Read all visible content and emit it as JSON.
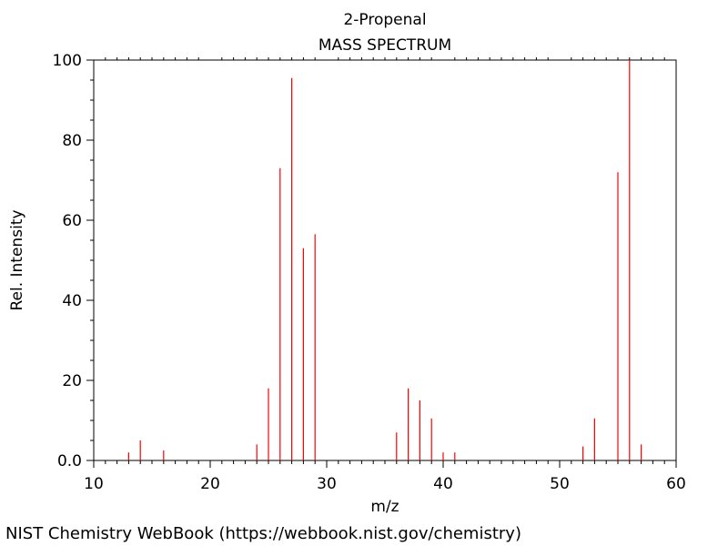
{
  "footer": "NIST Chemistry WebBook (https://webbook.nist.gov/chemistry)",
  "chart_data": {
    "type": "bar",
    "title": "2-Propenal",
    "subtitle": "MASS SPECTRUM",
    "xlabel": "m/z",
    "ylabel": "Rel. Intensity",
    "xlim": [
      10,
      60
    ],
    "ylim": [
      0,
      100
    ],
    "xticks": [
      10,
      20,
      30,
      40,
      50,
      60
    ],
    "xtick_labels": [
      "10",
      "20",
      "30",
      "40",
      "50",
      "60"
    ],
    "yticks": [
      0,
      20,
      40,
      60,
      80,
      100
    ],
    "ytick_labels": [
      "0.0",
      "20",
      "40",
      "60",
      "80",
      "100"
    ],
    "grid": false,
    "bar_color": "#ff0000",
    "peaks": [
      {
        "x": 13,
        "y": 2
      },
      {
        "x": 14,
        "y": 5
      },
      {
        "x": 16,
        "y": 2.5
      },
      {
        "x": 24,
        "y": 4
      },
      {
        "x": 25,
        "y": 18
      },
      {
        "x": 26,
        "y": 73
      },
      {
        "x": 27,
        "y": 95.5
      },
      {
        "x": 28,
        "y": 53
      },
      {
        "x": 29,
        "y": 56.5
      },
      {
        "x": 36,
        "y": 7
      },
      {
        "x": 37,
        "y": 18
      },
      {
        "x": 38,
        "y": 15
      },
      {
        "x": 39,
        "y": 10.5
      },
      {
        "x": 40,
        "y": 2
      },
      {
        "x": 41,
        "y": 2
      },
      {
        "x": 52,
        "y": 3.5
      },
      {
        "x": 53,
        "y": 10.5
      },
      {
        "x": 55,
        "y": 72
      },
      {
        "x": 56,
        "y": 100
      },
      {
        "x": 57,
        "y": 4
      }
    ]
  }
}
